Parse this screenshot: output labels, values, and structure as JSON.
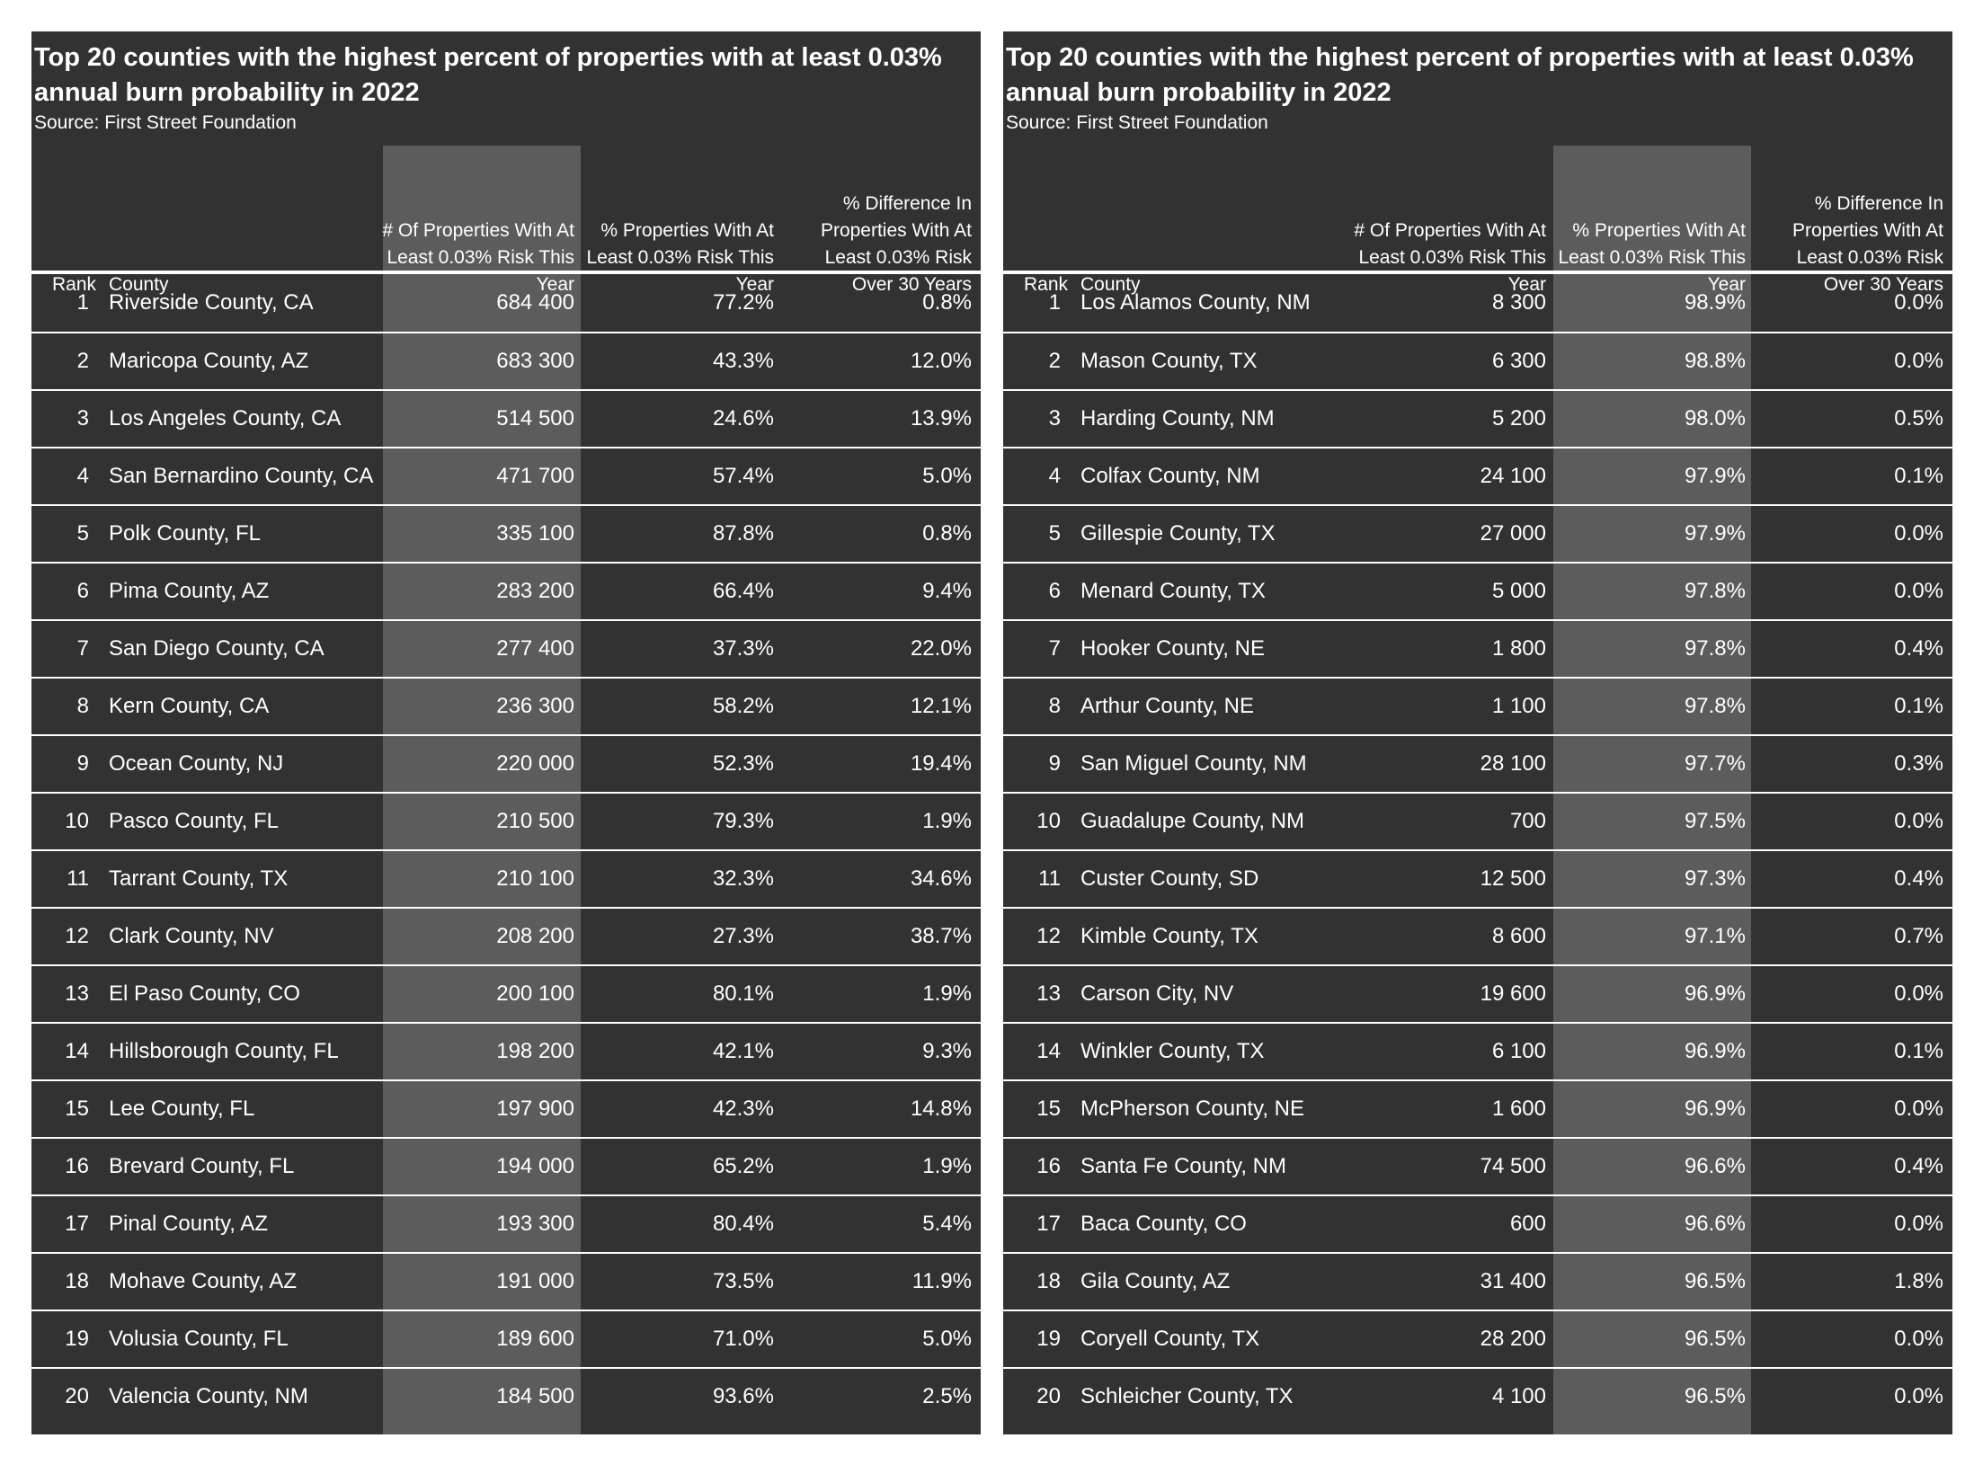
{
  "chart_data": [
    {
      "type": "table",
      "title": "Top 20 counties with the highest percent of properties with at least 0.03% annual burn probability in 2022",
      "source": "Source: First Street Foundation",
      "highlighted_column": 2,
      "columns": [
        "Rank",
        "County",
        "# Of Properties With At Least 0.03% Risk This Year",
        "% Properties With At Least 0.03% Risk This Year",
        "% Difference In Properties With At Least 0.03% Risk Over 30 Years"
      ],
      "rows": [
        [
          "1",
          "Riverside County, CA",
          "684 400",
          "77.2%",
          "0.8%"
        ],
        [
          "2",
          "Maricopa County, AZ",
          "683 300",
          "43.3%",
          "12.0%"
        ],
        [
          "3",
          "Los Angeles County, CA",
          "514 500",
          "24.6%",
          "13.9%"
        ],
        [
          "4",
          "San Bernardino County, CA",
          "471 700",
          "57.4%",
          "5.0%"
        ],
        [
          "5",
          "Polk County, FL",
          "335 100",
          "87.8%",
          "0.8%"
        ],
        [
          "6",
          "Pima County, AZ",
          "283 200",
          "66.4%",
          "9.4%"
        ],
        [
          "7",
          "San Diego County, CA",
          "277 400",
          "37.3%",
          "22.0%"
        ],
        [
          "8",
          "Kern County, CA",
          "236 300",
          "58.2%",
          "12.1%"
        ],
        [
          "9",
          "Ocean County, NJ",
          "220 000",
          "52.3%",
          "19.4%"
        ],
        [
          "10",
          "Pasco County, FL",
          "210 500",
          "79.3%",
          "1.9%"
        ],
        [
          "11",
          "Tarrant County, TX",
          "210 100",
          "32.3%",
          "34.6%"
        ],
        [
          "12",
          "Clark County, NV",
          "208 200",
          "27.3%",
          "38.7%"
        ],
        [
          "13",
          "El Paso County, CO",
          "200 100",
          "80.1%",
          "1.9%"
        ],
        [
          "14",
          "Hillsborough County, FL",
          "198 200",
          "42.1%",
          "9.3%"
        ],
        [
          "15",
          "Lee County, FL",
          "197 900",
          "42.3%",
          "14.8%"
        ],
        [
          "16",
          "Brevard County, FL",
          "194 000",
          "65.2%",
          "1.9%"
        ],
        [
          "17",
          "Pinal County, AZ",
          "193 300",
          "80.4%",
          "5.4%"
        ],
        [
          "18",
          "Mohave County, AZ",
          "191 000",
          "73.5%",
          "11.9%"
        ],
        [
          "19",
          "Volusia County, FL",
          "189 600",
          "71.0%",
          "5.0%"
        ],
        [
          "20",
          "Valencia County, NM",
          "184 500",
          "93.6%",
          "2.5%"
        ]
      ]
    },
    {
      "type": "table",
      "title": "Top 20 counties with the highest percent of properties with at least 0.03% annual burn probability in 2022",
      "source": "Source: First Street Foundation",
      "highlighted_column": 3,
      "columns": [
        "Rank",
        "County",
        "# Of Properties With At Least 0.03% Risk This Year",
        "% Properties With At Least 0.03% Risk This Year",
        "% Difference In Properties With At Least 0.03% Risk Over 30 Years"
      ],
      "rows": [
        [
          "1",
          "Los Alamos County, NM",
          "8 300",
          "98.9%",
          "0.0%"
        ],
        [
          "2",
          "Mason County, TX",
          "6 300",
          "98.8%",
          "0.0%"
        ],
        [
          "3",
          "Harding County, NM",
          "5 200",
          "98.0%",
          "0.5%"
        ],
        [
          "4",
          "Colfax County, NM",
          "24 100",
          "97.9%",
          "0.1%"
        ],
        [
          "5",
          "Gillespie County, TX",
          "27 000",
          "97.9%",
          "0.0%"
        ],
        [
          "6",
          "Menard County, TX",
          "5 000",
          "97.8%",
          "0.0%"
        ],
        [
          "7",
          "Hooker County, NE",
          "1 800",
          "97.8%",
          "0.4%"
        ],
        [
          "8",
          "Arthur County, NE",
          "1 100",
          "97.8%",
          "0.1%"
        ],
        [
          "9",
          "San Miguel County, NM",
          "28 100",
          "97.7%",
          "0.3%"
        ],
        [
          "10",
          "Guadalupe County, NM",
          "700",
          "97.5%",
          "0.0%"
        ],
        [
          "11",
          "Custer County, SD",
          "12 500",
          "97.3%",
          "0.4%"
        ],
        [
          "12",
          "Kimble County, TX",
          "8 600",
          "97.1%",
          "0.7%"
        ],
        [
          "13",
          "Carson City, NV",
          "19 600",
          "96.9%",
          "0.0%"
        ],
        [
          "14",
          "Winkler County, TX",
          "6 100",
          "96.9%",
          "0.1%"
        ],
        [
          "15",
          "McPherson County, NE",
          "1 600",
          "96.9%",
          "0.0%"
        ],
        [
          "16",
          "Santa Fe County, NM",
          "74 500",
          "96.6%",
          "0.4%"
        ],
        [
          "17",
          "Baca County, CO",
          "600",
          "96.6%",
          "0.0%"
        ],
        [
          "18",
          "Gila County, AZ",
          "31 400",
          "96.5%",
          "1.8%"
        ],
        [
          "19",
          "Coryell County, TX",
          "28 200",
          "96.5%",
          "0.0%"
        ],
        [
          "20",
          "Schleicher County, TX",
          "4 100",
          "96.5%",
          "0.0%"
        ]
      ]
    }
  ]
}
